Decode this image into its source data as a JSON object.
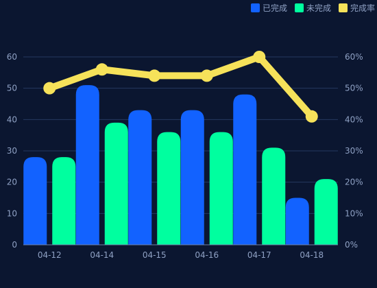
{
  "chart_data": {
    "type": "bar",
    "categories": [
      "04-12",
      "04-14",
      "04-15",
      "04-16",
      "04-17",
      "04-18"
    ],
    "series": [
      {
        "name": "已完成",
        "type": "bar",
        "color": "#1262ff",
        "values": [
          28,
          51,
          43,
          43,
          48,
          15
        ]
      },
      {
        "name": "未完成",
        "type": "bar",
        "color": "#00ff9f",
        "values": [
          28,
          39,
          36,
          36,
          31,
          21
        ]
      },
      {
        "name": "完成率",
        "type": "line",
        "color": "#f6e25a",
        "axis": "right",
        "values": [
          50,
          56,
          54,
          54,
          60,
          41
        ]
      }
    ],
    "left_axis": {
      "ticks": [
        "0",
        "10",
        "20",
        "30",
        "40",
        "50",
        "60"
      ],
      "ylim": [
        0,
        60
      ]
    },
    "right_axis": {
      "ticks": [
        "0%",
        "10%",
        "20%",
        "30%",
        "40%",
        "50%",
        "60%"
      ],
      "ylim": [
        0,
        60
      ]
    },
    "legend": {
      "placement": "top-right",
      "items": [
        "已完成",
        "未完成",
        "完成率"
      ]
    },
    "grid": true
  }
}
